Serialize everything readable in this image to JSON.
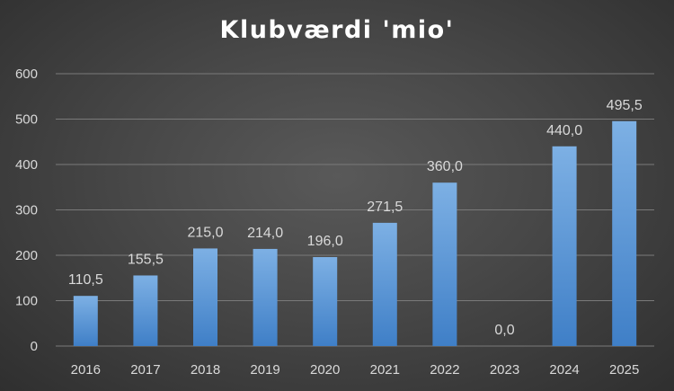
{
  "chart_data": {
    "type": "bar",
    "title": "Klubværdi 'mio'",
    "xlabel": "",
    "ylabel": "",
    "categories": [
      "2016",
      "2017",
      "2018",
      "2019",
      "2020",
      "2021",
      "2022",
      "2023",
      "2024",
      "2025"
    ],
    "values": [
      110.5,
      155.5,
      215.0,
      214.0,
      196.0,
      271.5,
      360.0,
      0.0,
      440.0,
      495.5
    ],
    "data_labels": [
      "110,5",
      "155,5",
      "215,0",
      "214,0",
      "196,0",
      "271,5",
      "360,0",
      "0,0",
      "440,0",
      "495,5"
    ],
    "ylim": [
      0,
      600
    ],
    "yticks": [
      "0",
      "100",
      "200",
      "300",
      "400",
      "500",
      "600"
    ],
    "grid": true,
    "legend": "none",
    "colors": {
      "bar_top": "#7db0e4",
      "bar_bottom": "#3f7fc7",
      "grid": "#7a7a7a",
      "text": "#d9d9d9"
    }
  }
}
